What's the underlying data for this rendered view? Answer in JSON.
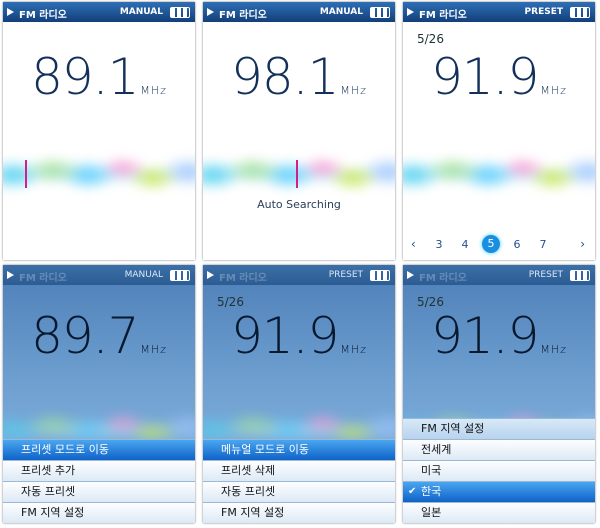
{
  "screens": [
    {
      "header": {
        "title": "FM 라디오",
        "mode": "MANUAL"
      },
      "frequency": 89.1,
      "unit": "MHz",
      "theme": "light",
      "cursor": 22
    },
    {
      "header": {
        "title": "FM 라디오",
        "mode": "MANUAL"
      },
      "frequency": 98.1,
      "unit": "MHz",
      "theme": "light",
      "cursor": 93,
      "status": "Auto Searching"
    },
    {
      "header": {
        "title": "FM 라디오",
        "mode": "PRESET"
      },
      "counter": "5/26",
      "frequency": 91.9,
      "unit": "MHz",
      "theme": "light",
      "presets": [
        3,
        4,
        5,
        6,
        7
      ],
      "current_preset": 2
    },
    {
      "header": {
        "title": "FM 라디오",
        "mode": "MANUAL"
      },
      "frequency": 89.7,
      "unit": "MHz",
      "theme": "dark",
      "menu": {
        "items": [
          "프리셋 모드로 이동",
          "프리셋 추가",
          "자동 프리셋",
          "FM 지역 설정"
        ],
        "selected": 0
      }
    },
    {
      "header": {
        "title": "FM 라디오",
        "mode": "PRESET"
      },
      "counter": "5/26",
      "frequency": 91.9,
      "unit": "MHz",
      "theme": "dark",
      "menu": {
        "items": [
          "메뉴얼 모드로 이동",
          "프리셋 삭제",
          "자동 프리셋",
          "FM 지역 설정"
        ],
        "selected": 0
      }
    },
    {
      "header": {
        "title": "FM 라디오",
        "mode": "PRESET"
      },
      "counter": "5/26",
      "frequency": 91.9,
      "unit": "MHz",
      "theme": "dark",
      "menu": {
        "heading": "FM 지역 설정",
        "items": [
          "전세계",
          "미국",
          "한국",
          "일본"
        ],
        "selected": 2
      }
    }
  ]
}
